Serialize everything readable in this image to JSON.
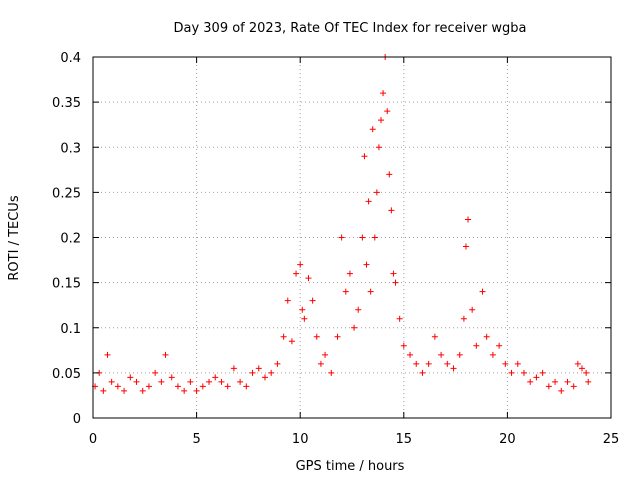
{
  "chart_data": {
    "type": "scatter",
    "title": "Day 309 of 2023, Rate Of TEC Index for receiver wgba",
    "xlabel": "GPS time / hours",
    "ylabel": "ROTI / TECUs",
    "xlim": [
      0,
      25
    ],
    "ylim": [
      0,
      0.4
    ],
    "x_ticks": [
      0,
      5,
      10,
      15,
      20,
      25
    ],
    "x_tick_labels": [
      "0",
      "5",
      "10",
      "15",
      "20",
      "25"
    ],
    "y_ticks": [
      0,
      0.05,
      0.1,
      0.15,
      0.2,
      0.25,
      0.3,
      0.35,
      0.4
    ],
    "y_tick_labels": [
      "0",
      "0.05",
      "0.1",
      "0.15",
      "0.2",
      "0.25",
      "0.3",
      "0.35",
      "0.4"
    ],
    "grid": true,
    "marker": "+",
    "color": "#ff0000",
    "series": [
      {
        "name": "ROTI",
        "x": [
          0.1,
          0.3,
          0.5,
          0.7,
          0.9,
          1.2,
          1.5,
          1.8,
          2.1,
          2.4,
          2.7,
          3.0,
          3.3,
          3.5,
          3.8,
          4.1,
          4.4,
          4.7,
          5.0,
          5.3,
          5.6,
          5.9,
          6.2,
          6.5,
          6.8,
          7.1,
          7.4,
          7.7,
          8.0,
          8.3,
          8.6,
          8.9,
          9.2,
          9.4,
          9.6,
          9.8,
          10.0,
          10.1,
          10.2,
          10.4,
          10.6,
          10.8,
          11.0,
          11.2,
          11.5,
          11.8,
          12.0,
          12.2,
          12.4,
          12.6,
          12.8,
          13.0,
          13.1,
          13.2,
          13.3,
          13.4,
          13.5,
          13.6,
          13.7,
          13.8,
          13.9,
          14.0,
          14.1,
          14.2,
          14.3,
          14.4,
          14.5,
          14.6,
          14.8,
          15.0,
          15.3,
          15.6,
          15.9,
          16.2,
          16.5,
          16.8,
          17.1,
          17.4,
          17.7,
          17.9,
          18.0,
          18.1,
          18.3,
          18.5,
          18.8,
          19.0,
          19.3,
          19.6,
          19.9,
          20.2,
          20.5,
          20.8,
          21.1,
          21.4,
          21.7,
          22.0,
          22.3,
          22.6,
          22.9,
          23.2,
          23.4,
          23.6,
          23.8,
          23.9
        ],
        "y": [
          0.035,
          0.05,
          0.03,
          0.07,
          0.04,
          0.035,
          0.03,
          0.045,
          0.04,
          0.03,
          0.035,
          0.05,
          0.04,
          0.07,
          0.045,
          0.035,
          0.03,
          0.04,
          0.03,
          0.035,
          0.04,
          0.045,
          0.04,
          0.035,
          0.055,
          0.04,
          0.035,
          0.05,
          0.055,
          0.045,
          0.05,
          0.06,
          0.09,
          0.13,
          0.085,
          0.16,
          0.17,
          0.12,
          0.11,
          0.155,
          0.13,
          0.09,
          0.06,
          0.07,
          0.05,
          0.09,
          0.2,
          0.14,
          0.16,
          0.1,
          0.12,
          0.2,
          0.29,
          0.17,
          0.24,
          0.14,
          0.32,
          0.2,
          0.25,
          0.3,
          0.33,
          0.36,
          0.4,
          0.34,
          0.27,
          0.23,
          0.16,
          0.15,
          0.11,
          0.08,
          0.07,
          0.06,
          0.05,
          0.06,
          0.09,
          0.07,
          0.06,
          0.055,
          0.07,
          0.11,
          0.19,
          0.22,
          0.12,
          0.08,
          0.14,
          0.09,
          0.07,
          0.08,
          0.06,
          0.05,
          0.06,
          0.05,
          0.04,
          0.045,
          0.05,
          0.035,
          0.04,
          0.03,
          0.04,
          0.035,
          0.06,
          0.055,
          0.05,
          0.04
        ]
      }
    ]
  }
}
